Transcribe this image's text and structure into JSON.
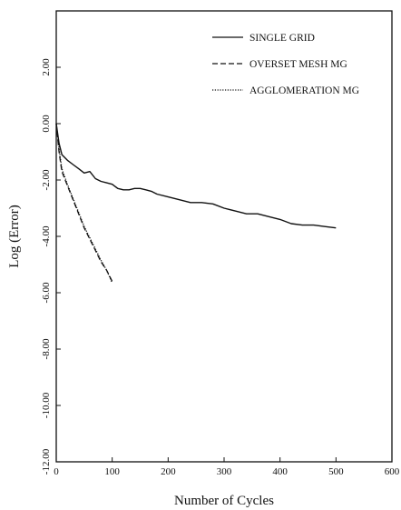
{
  "chart_data": {
    "type": "line",
    "title": "",
    "xlabel": "Number of Cycles",
    "ylabel": "Log (Error)",
    "xlim": [
      0,
      600
    ],
    "ylim": [
      -12,
      4
    ],
    "xticks": [
      0,
      100,
      200,
      300,
      400,
      500,
      600
    ],
    "xtick_labels": [
      "0",
      "100",
      "200",
      "300",
      "400",
      "500",
      "600"
    ],
    "yticks": [
      2,
      0,
      -2,
      -4,
      -6,
      -8,
      -10,
      -12
    ],
    "ytick_labels": [
      "2.00",
      "0.00",
      "-2.00",
      "-4.00",
      "-6.00",
      "-8.00",
      "-10.00",
      "-12.00"
    ],
    "grid": false,
    "legend_position": "top-right",
    "series": [
      {
        "name": "SINGLE GRID",
        "style": "solid",
        "x": [
          0,
          5,
          10,
          20,
          30,
          40,
          50,
          60,
          70,
          80,
          90,
          100,
          110,
          120,
          130,
          140,
          150,
          160,
          170,
          180,
          200,
          220,
          240,
          260,
          280,
          300,
          320,
          340,
          360,
          380,
          400,
          420,
          440,
          460,
          480,
          500
        ],
        "y": [
          0.0,
          -0.7,
          -1.1,
          -1.3,
          -1.45,
          -1.6,
          -1.75,
          -1.7,
          -1.95,
          -2.05,
          -2.1,
          -2.15,
          -2.3,
          -2.35,
          -2.35,
          -2.3,
          -2.3,
          -2.35,
          -2.4,
          -2.5,
          -2.6,
          -2.7,
          -2.8,
          -2.8,
          -2.85,
          -3.0,
          -3.1,
          -3.2,
          -3.2,
          -3.3,
          -3.4,
          -3.55,
          -3.6,
          -3.6,
          -3.65,
          -3.7
        ]
      },
      {
        "name": "OVERSET MESH MG",
        "style": "dashed",
        "x": [
          0,
          5,
          10,
          20,
          30,
          40,
          50,
          60,
          70,
          80,
          90,
          100
        ],
        "y": [
          0.0,
          -1.0,
          -1.7,
          -2.2,
          -2.7,
          -3.2,
          -3.7,
          -4.1,
          -4.5,
          -4.9,
          -5.2,
          -5.6
        ]
      },
      {
        "name": "AGGLOMERATION MG",
        "style": "dotted",
        "x": [
          0,
          5,
          10,
          20,
          30,
          40,
          50,
          60,
          70,
          80,
          90,
          100
        ],
        "y": [
          0.0,
          -0.9,
          -1.6,
          -2.15,
          -2.65,
          -3.15,
          -3.65,
          -4.05,
          -4.45,
          -4.85,
          -5.2,
          -5.65
        ]
      }
    ]
  }
}
